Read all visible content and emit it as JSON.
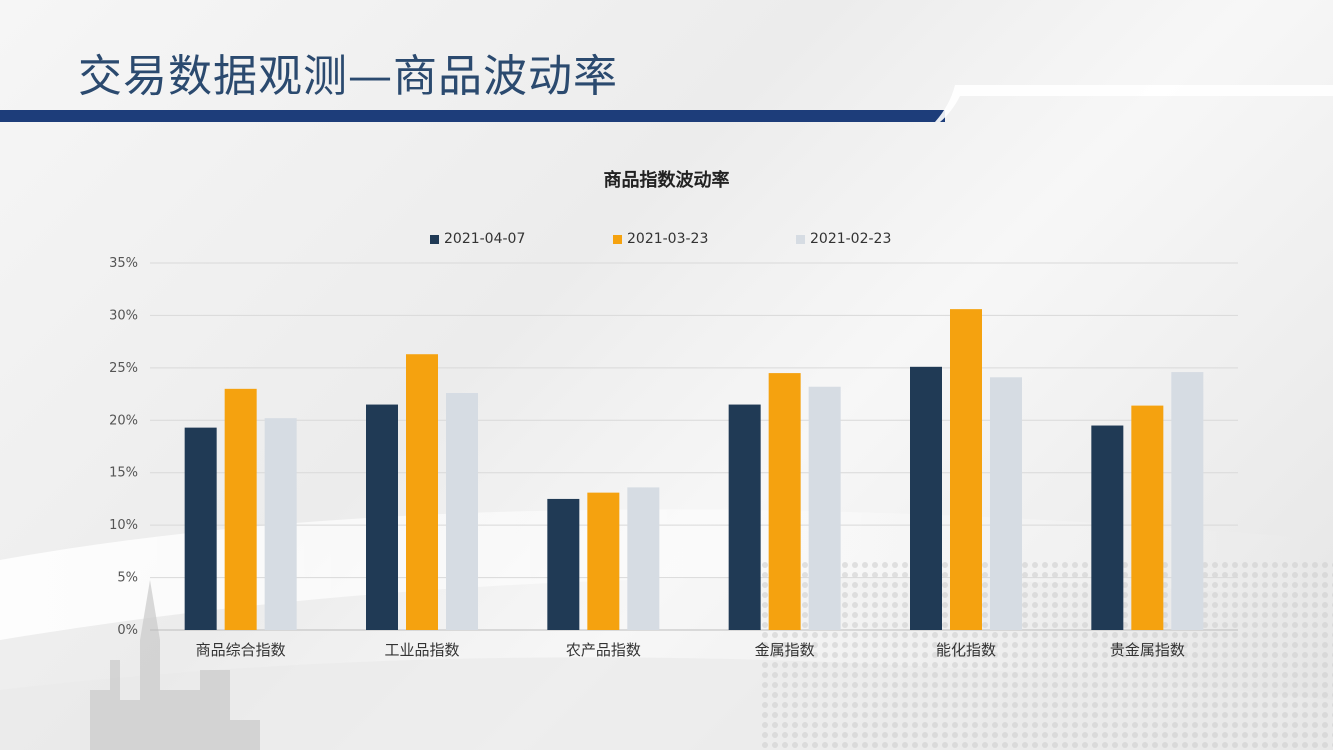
{
  "slide": {
    "title": "交易数据观测—商品波动率",
    "colors": {
      "title_text": "#2b4a6f",
      "accent_bar": "#1d3d7a"
    }
  },
  "chart_data": {
    "type": "bar",
    "title": "商品指数波动率",
    "categories": [
      "商品综合指数",
      "工业品指数",
      "农产品指数",
      "金属指数",
      "能化指数",
      "贵金属指数"
    ],
    "series": [
      {
        "name": "2021-04-07",
        "color": "#203a55",
        "values": [
          0.193,
          0.215,
          0.125,
          0.215,
          0.251,
          0.195
        ]
      },
      {
        "name": "2021-03-23",
        "color": "#f5a20f",
        "values": [
          0.23,
          0.263,
          0.131,
          0.245,
          0.306,
          0.214
        ]
      },
      {
        "name": "2021-02-23",
        "color": "#d6dce3",
        "values": [
          0.202,
          0.226,
          0.136,
          0.232,
          0.241,
          0.246
        ]
      }
    ],
    "y_ticks": [
      "0%",
      "5%",
      "10%",
      "15%",
      "20%",
      "25%",
      "30%",
      "35%"
    ],
    "ylim": [
      0,
      0.35
    ],
    "grid": true,
    "legend_position": "top"
  }
}
